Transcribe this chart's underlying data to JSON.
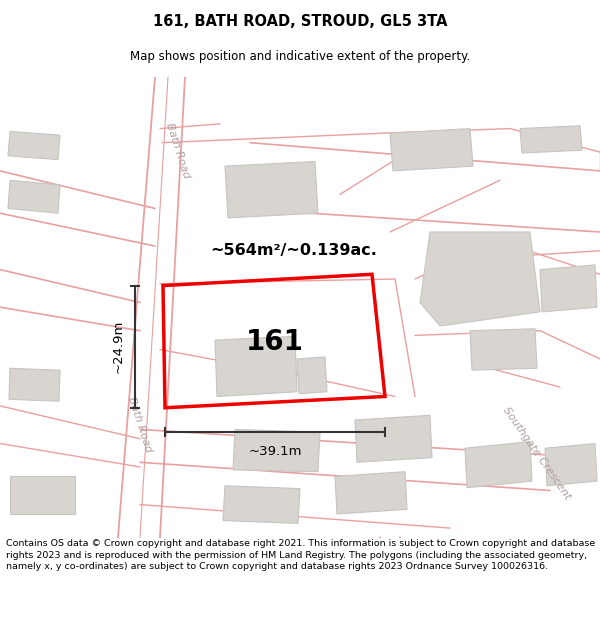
{
  "title": "161, BATH ROAD, STROUD, GL5 3TA",
  "subtitle": "Map shows position and indicative extent of the property.",
  "footer": "Contains OS data © Crown copyright and database right 2021. This information is subject to Crown copyright and database rights 2023 and is reproduced with the permission of HM Land Registry. The polygons (including the associated geometry, namely x, y co-ordinates) are subject to Crown copyright and database rights 2023 Ordnance Survey 100026316.",
  "map_bg": "#ffffff",
  "road_color": "#e8a0a0",
  "building_fill": "#d8d4d0",
  "building_edge": "#c8c4c0",
  "plot_color": "#ee0000",
  "plot_label": "161",
  "area_label": "~564m²/~0.139ac.",
  "width_label": "~39.1m",
  "height_label": "~24.9m",
  "road_label_bath_top": "Bath Road",
  "road_label_bath_bottom": "Bath Road",
  "road_label_southgate": "Southgate Crescent",
  "dim_line_color": "#333333"
}
